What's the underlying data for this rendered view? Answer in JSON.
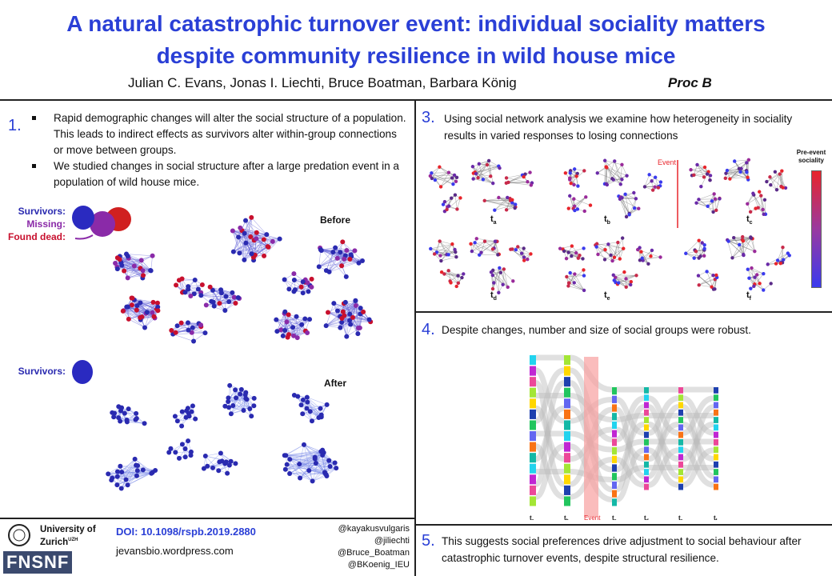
{
  "header": {
    "title_line1": "A natural catastrophic turnover event: individual sociality matters",
    "title_line2": "despite community resilience in wild house mice",
    "authors": "Julian C. Evans, Jonas I. Liechti, Bruce Boatman, Barbara König",
    "journal": "Proc B"
  },
  "section1": {
    "number": "1.",
    "bullets": [
      "Rapid demographic changes will alter the social structure of a population. This leads to indirect effects as survivors alter within-group connections or move between groups.",
      "We studied changes in social structure after a large predation event in a population of wild house mice."
    ],
    "legend": {
      "survivors": "Survivors:",
      "missing": "Missing:",
      "found_dead": "Found dead:"
    },
    "before_label": "Before",
    "after_label": "After",
    "after_legend": "Survivors:"
  },
  "section3": {
    "number": "3.",
    "text": "Using social network analysis we examine how heterogeneity in sociality results in varied responses to losing connections",
    "event_label": "Event",
    "colorbar_title": "Pre-event sociality",
    "panels": [
      {
        "t": "t",
        "sub": "a"
      },
      {
        "t": "t",
        "sub": "b"
      },
      {
        "t": "t",
        "sub": "c"
      },
      {
        "t": "t",
        "sub": "d"
      },
      {
        "t": "t",
        "sub": "e"
      },
      {
        "t": "t",
        "sub": "f"
      }
    ]
  },
  "section4": {
    "number": "4.",
    "text": "Despite changes, number and size of social groups were robust.",
    "event_label": "Event",
    "axis": [
      {
        "t": "t",
        "sub": "a"
      },
      {
        "t": "t",
        "sub": "b"
      },
      {
        "t": "t",
        "sub": "c"
      },
      {
        "t": "t",
        "sub": "d"
      },
      {
        "t": "t",
        "sub": "e"
      },
      {
        "t": "t",
        "sub": "f"
      }
    ]
  },
  "section5": {
    "number": "5.",
    "text": "This suggests social preferences drive adjustment to social behaviour after catastrophic turnover events, despite structural resilience."
  },
  "footer": {
    "doi": "DOI: 10.1098/rspb.2019.2880",
    "website": "jevansbio.wordpress.com",
    "handles": [
      "@kayakusvulgaris",
      "@jiliechti",
      "@Bruce_Boatman",
      "@BKoenig_IEU"
    ],
    "university": "University of Zurich",
    "university_sup": "UZH",
    "funder": "FNSNF"
  },
  "colors": {
    "title": "#2a3fd6",
    "survivor": "#2a2ab0",
    "missing": "#8a2aa8",
    "dead": "#c8102e",
    "event": "#e8242b"
  }
}
